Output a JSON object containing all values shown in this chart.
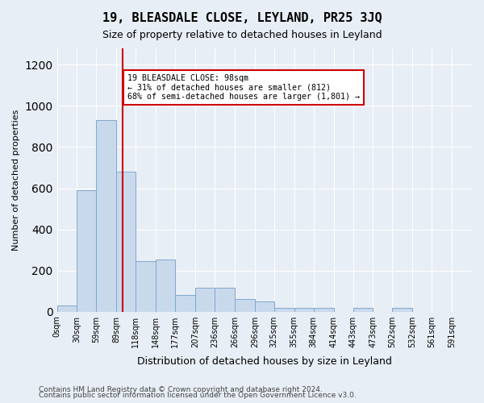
{
  "title": "19, BLEASDALE CLOSE, LEYLAND, PR25 3JQ",
  "subtitle": "Size of property relative to detached houses in Leyland",
  "xlabel": "Distribution of detached houses by size in Leyland",
  "ylabel": "Number of detached properties",
  "footer_line1": "Contains HM Land Registry data © Crown copyright and database right 2024.",
  "footer_line2": "Contains public sector information licensed under the Open Government Licence v3.0.",
  "bin_labels": [
    "0sqm",
    "30sqm",
    "59sqm",
    "89sqm",
    "118sqm",
    "148sqm",
    "177sqm",
    "207sqm",
    "236sqm",
    "266sqm",
    "296sqm",
    "325sqm",
    "355sqm",
    "384sqm",
    "414sqm",
    "443sqm",
    "473sqm",
    "502sqm",
    "532sqm",
    "561sqm",
    "591sqm"
  ],
  "bar_heights": [
    30,
    590,
    930,
    680,
    245,
    255,
    80,
    115,
    115,
    60,
    50,
    20,
    20,
    20,
    0,
    20,
    0,
    20,
    0,
    0
  ],
  "bin_edges": [
    0,
    30,
    59,
    89,
    118,
    148,
    177,
    207,
    236,
    266,
    296,
    325,
    355,
    384,
    414,
    443,
    473,
    502,
    532,
    561,
    591,
    621
  ],
  "bar_color": "#c9d9ec",
  "bar_edge_color": "#7fa8cc",
  "red_line_x": 98,
  "annotation_title": "19 BLEASDALE CLOSE: 98sqm",
  "annotation_line1": "← 31% of detached houses are smaller (812)",
  "annotation_line2": "68% of semi-detached houses are larger (1,801) →",
  "annotation_box_color": "#ffffff",
  "annotation_box_edge": "#cc0000",
  "red_line_color": "#cc0000",
  "ylim": [
    0,
    1280
  ],
  "yticks": [
    0,
    200,
    400,
    600,
    800,
    1000,
    1200
  ],
  "bg_color": "#e8eef5",
  "plot_bg_color": "#e8eef5"
}
